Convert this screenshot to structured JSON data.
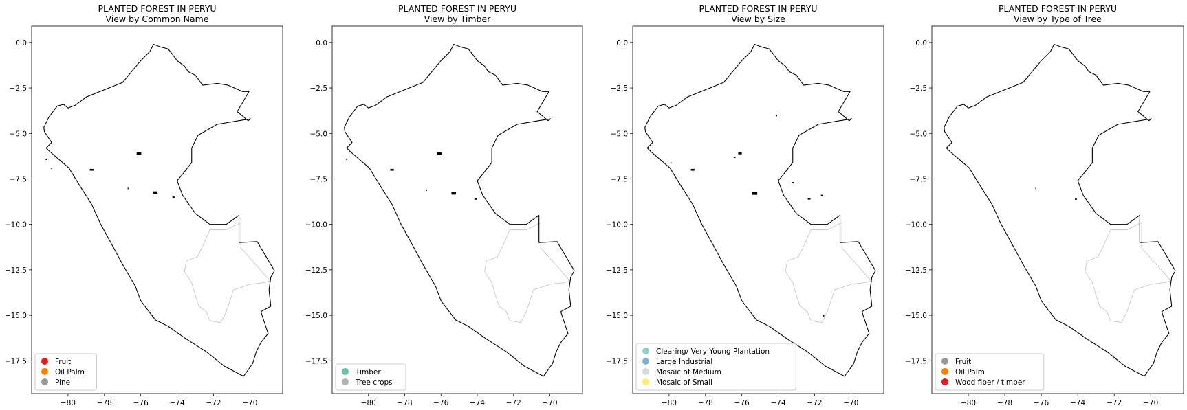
{
  "chart_data": [
    {
      "type": "map",
      "title": "PLANTED FOREST IN PERYU",
      "subtitle": "View by Common Name",
      "xlim": [
        -82.0,
        -68.2
      ],
      "ylim": [
        -19.3,
        0.9
      ],
      "x_ticks": [
        -80,
        -78,
        -76,
        -74,
        -72,
        -70
      ],
      "y_ticks": [
        0.0,
        -2.5,
        -5.0,
        -7.5,
        -10.0,
        -12.5,
        -15.0,
        -17.5
      ],
      "legend_position": "lower-left",
      "legend": [
        {
          "label": "Fruit",
          "color": "#e41a1c"
        },
        {
          "label": "Oil Palm",
          "color": "#ff7f00"
        },
        {
          "label": "Pine",
          "color": "#999999"
        }
      ]
    },
    {
      "type": "map",
      "title": "PLANTED FOREST IN PERYU",
      "subtitle": "View by Timber",
      "xlim": [
        -82.0,
        -68.2
      ],
      "ylim": [
        -19.3,
        0.9
      ],
      "x_ticks": [
        -80,
        -78,
        -76,
        -74,
        -72,
        -70
      ],
      "y_ticks": [
        0.0,
        -2.5,
        -5.0,
        -7.5,
        -10.0,
        -12.5,
        -15.0,
        -17.5
      ],
      "legend_position": "lower-left",
      "legend": [
        {
          "label": "Timber",
          "color": "#66c2a5"
        },
        {
          "label": "Tree crops",
          "color": "#b3b3b3"
        }
      ]
    },
    {
      "type": "map",
      "title": "PLANTED FOREST IN PERYU",
      "subtitle": "View by Size",
      "xlim": [
        -82.0,
        -68.2
      ],
      "ylim": [
        -19.3,
        0.9
      ],
      "x_ticks": [
        -80,
        -78,
        -76,
        -74,
        -72,
        -70
      ],
      "y_ticks": [
        0.0,
        -2.5,
        -5.0,
        -7.5,
        -10.0,
        -12.5,
        -15.0,
        -17.5
      ],
      "legend_position": "lower-left",
      "legend": [
        {
          "label": "Clearing/ Very Young Plantation",
          "color": "#8dd3c7"
        },
        {
          "label": "Large Industrial",
          "color": "#80b1d3"
        },
        {
          "label": "Mosaic of Medium",
          "color": "#d9d9d9"
        },
        {
          "label": "Mosaic of Small",
          "color": "#ffed6f"
        }
      ]
    },
    {
      "type": "map",
      "title": "PLANTED FOREST IN PERYU",
      "subtitle": "View by Type of Tree",
      "xlim": [
        -82.0,
        -68.2
      ],
      "ylim": [
        -19.3,
        0.9
      ],
      "x_ticks": [
        -80,
        -78,
        -76,
        -74,
        -72,
        -70
      ],
      "y_ticks": [
        0.0,
        -2.5,
        -5.0,
        -7.5,
        -10.0,
        -12.5,
        -15.0,
        -17.5
      ],
      "legend_position": "lower-left",
      "legend": [
        {
          "label": "Fruit",
          "color": "#999999"
        },
        {
          "label": "Oil Palm",
          "color": "#ff7f00"
        },
        {
          "label": "Wood fiber / timber",
          "color": "#e41a1c"
        }
      ]
    }
  ]
}
